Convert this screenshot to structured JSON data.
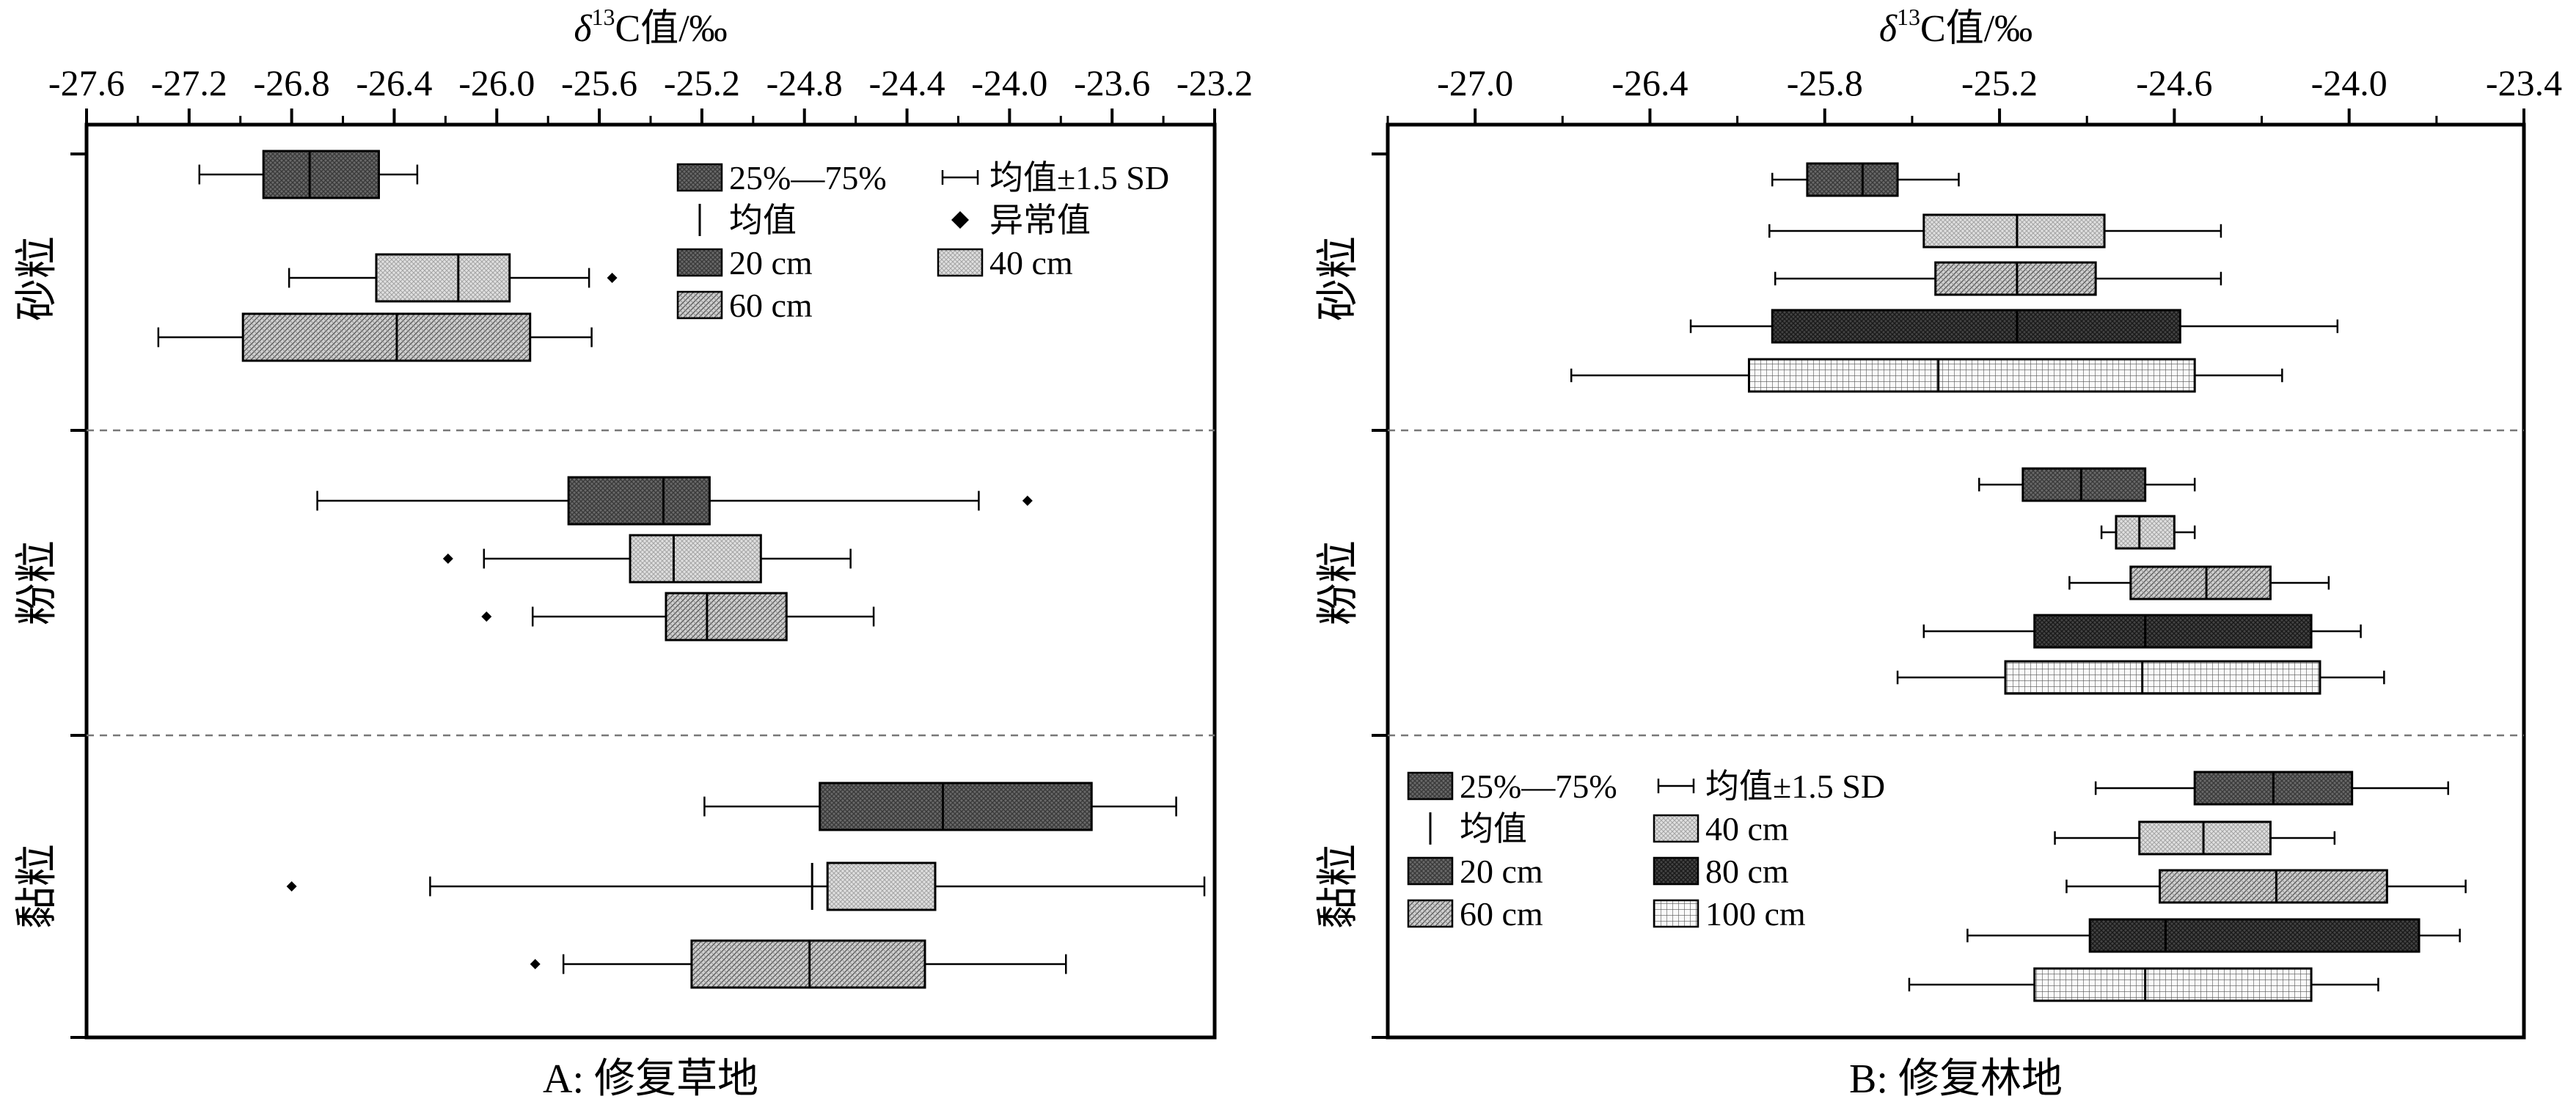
{
  "patterns": {
    "20 cm": "dark-dots",
    "40 cm": "light-dots",
    "60 cm": "diagonal-hatch",
    "80 cm": "dark-crosshatch",
    "100 cm": "grid"
  },
  "chart_data": [
    {
      "type": "box",
      "panel_caption": "A: 修复草地",
      "xlabel_prefix": "δ",
      "xlabel_sup": "13",
      "xlabel_suffix": "C值/‰",
      "xlim": [
        -27.6,
        -23.2
      ],
      "xticks": [
        -27.6,
        -27.2,
        -26.8,
        -26.4,
        -26.0,
        -25.6,
        -25.2,
        -24.8,
        -24.4,
        -24.0,
        -23.6,
        -23.2
      ],
      "xtick_labels": [
        "-27.6",
        "-27.2",
        "-26.8",
        "-26.4",
        "-26.0",
        "-25.6",
        "-25.2",
        "-24.8",
        "-24.4",
        "-24.0",
        "-23.6",
        "-23.2"
      ],
      "groups": [
        "砂粒",
        "粉粒",
        "黏粒"
      ],
      "legend": {
        "position": "top-right",
        "items": [
          {
            "kind": "box",
            "label": "25%—75%"
          },
          {
            "kind": "whisker",
            "label": "均值±1.5 SD"
          },
          {
            "kind": "mean",
            "label": "均值"
          },
          {
            "kind": "outlier",
            "label": "异常值"
          },
          {
            "kind": "depth",
            "label": "20 cm",
            "depth": "20 cm"
          },
          {
            "kind": "depth",
            "label": "40 cm",
            "depth": "40 cm"
          },
          {
            "kind": "depth",
            "label": "60 cm",
            "depth": "60 cm"
          }
        ]
      },
      "boxes": [
        {
          "group": "砂粒",
          "depth": "20 cm",
          "whisker_low": -27.16,
          "q1": -26.91,
          "mean": -26.73,
          "q3": -26.46,
          "whisker_high": -26.31,
          "outliers": []
        },
        {
          "group": "砂粒",
          "depth": "40 cm",
          "whisker_low": -26.81,
          "q1": -26.47,
          "mean": -26.15,
          "q3": -25.95,
          "whisker_high": -25.64,
          "outliers": [
            -25.55
          ]
        },
        {
          "group": "砂粒",
          "depth": "60 cm",
          "whisker_low": -27.32,
          "q1": -26.99,
          "mean": -26.39,
          "q3": -25.87,
          "whisker_high": -25.63,
          "outliers": []
        },
        {
          "group": "粉粒",
          "depth": "20 cm",
          "whisker_low": -26.7,
          "q1": -25.72,
          "mean": -25.35,
          "q3": -25.17,
          "whisker_high": -24.12,
          "outliers": [
            -23.93
          ]
        },
        {
          "group": "粉粒",
          "depth": "40 cm",
          "whisker_low": -26.05,
          "q1": -25.48,
          "mean": -25.31,
          "q3": -24.97,
          "whisker_high": -24.62,
          "outliers": [
            -26.19
          ]
        },
        {
          "group": "粉粒",
          "depth": "60 cm",
          "whisker_low": -25.86,
          "q1": -25.34,
          "mean": -25.18,
          "q3": -24.87,
          "whisker_high": -24.53,
          "outliers": [
            -26.04
          ]
        },
        {
          "group": "黏粒",
          "depth": "20 cm",
          "whisker_low": -25.19,
          "q1": -24.74,
          "mean": -24.26,
          "q3": -23.68,
          "whisker_high": -23.35,
          "outliers": []
        },
        {
          "group": "黏粒",
          "depth": "40 cm",
          "whisker_low": -26.26,
          "q1": -24.71,
          "mean": -24.77,
          "q3": -24.29,
          "whisker_high": -23.24,
          "outliers": [
            -26.8
          ]
        },
        {
          "group": "黏粒",
          "depth": "60 cm",
          "whisker_low": -25.74,
          "q1": -25.24,
          "mean": -24.78,
          "q3": -24.33,
          "whisker_high": -23.78,
          "outliers": [
            -25.85
          ]
        }
      ]
    },
    {
      "type": "box",
      "panel_caption": "B: 修复林地",
      "xlabel_prefix": "δ",
      "xlabel_sup": "13",
      "xlabel_suffix": "C值/‰",
      "xlim": [
        -27.3,
        -23.4
      ],
      "xticks": [
        -27.0,
        -26.4,
        -25.8,
        -25.2,
        -24.6,
        -24.0,
        -23.4
      ],
      "xtick_labels": [
        "-27.0",
        "-26.4",
        "-25.8",
        "-25.2",
        "-24.6",
        "-24.0",
        "-23.4"
      ],
      "minor_step": 0.3,
      "groups": [
        "砂粒",
        "粉粒",
        "黏粒"
      ],
      "legend": {
        "position": "bottom-left",
        "items": [
          {
            "kind": "box",
            "label": "25%—75%"
          },
          {
            "kind": "whisker",
            "label": "均值±1.5 SD"
          },
          {
            "kind": "mean",
            "label": "均值"
          },
          {
            "kind": "depth",
            "label": "40 cm",
            "depth": "40 cm"
          },
          {
            "kind": "depth",
            "label": "20 cm",
            "depth": "20 cm"
          },
          {
            "kind": "depth",
            "label": "80 cm",
            "depth": "80 cm"
          },
          {
            "kind": "depth",
            "label": "60 cm",
            "depth": "60 cm"
          },
          {
            "kind": "depth",
            "label": "100 cm",
            "depth": "100 cm"
          }
        ]
      },
      "boxes": [
        {
          "group": "砂粒",
          "depth": "20 cm",
          "whisker_low": -25.98,
          "q1": -25.86,
          "mean": -25.67,
          "q3": -25.55,
          "whisker_high": -25.34,
          "outliers": []
        },
        {
          "group": "砂粒",
          "depth": "40 cm",
          "whisker_low": -25.99,
          "q1": -25.46,
          "mean": -25.14,
          "q3": -24.84,
          "whisker_high": -24.44,
          "outliers": []
        },
        {
          "group": "砂粒",
          "depth": "60 cm",
          "whisker_low": -25.97,
          "q1": -25.42,
          "mean": -25.14,
          "q3": -24.87,
          "whisker_high": -24.44,
          "outliers": []
        },
        {
          "group": "砂粒",
          "depth": "80 cm",
          "whisker_low": -26.26,
          "q1": -25.98,
          "mean": -25.14,
          "q3": -24.58,
          "whisker_high": -24.04,
          "outliers": []
        },
        {
          "group": "砂粒",
          "depth": "100 cm",
          "whisker_low": -26.67,
          "q1": -26.06,
          "mean": -25.41,
          "q3": -24.53,
          "whisker_high": -24.23,
          "outliers": []
        },
        {
          "group": "粉粒",
          "depth": "20 cm",
          "whisker_low": -25.27,
          "q1": -25.12,
          "mean": -24.92,
          "q3": -24.7,
          "whisker_high": -24.53,
          "outliers": []
        },
        {
          "group": "粉粒",
          "depth": "40 cm",
          "whisker_low": -24.85,
          "q1": -24.8,
          "mean": -24.72,
          "q3": -24.6,
          "whisker_high": -24.53,
          "outliers": []
        },
        {
          "group": "粉粒",
          "depth": "60 cm",
          "whisker_low": -24.96,
          "q1": -24.75,
          "mean": -24.49,
          "q3": -24.27,
          "whisker_high": -24.07,
          "outliers": []
        },
        {
          "group": "粉粒",
          "depth": "80 cm",
          "whisker_low": -25.46,
          "q1": -25.08,
          "mean": -24.7,
          "q3": -24.13,
          "whisker_high": -23.96,
          "outliers": []
        },
        {
          "group": "粉粒",
          "depth": "100 cm",
          "whisker_low": -25.55,
          "q1": -25.18,
          "mean": -24.71,
          "q3": -24.1,
          "whisker_high": -23.88,
          "outliers": []
        },
        {
          "group": "黏粒",
          "depth": "20 cm",
          "whisker_low": -24.87,
          "q1": -24.53,
          "mean": -24.26,
          "q3": -23.99,
          "whisker_high": -23.66,
          "outliers": []
        },
        {
          "group": "黏粒",
          "depth": "40 cm",
          "whisker_low": -25.01,
          "q1": -24.72,
          "mean": -24.5,
          "q3": -24.27,
          "whisker_high": -24.05,
          "outliers": []
        },
        {
          "group": "黏粒",
          "depth": "60 cm",
          "whisker_low": -24.97,
          "q1": -24.65,
          "mean": -24.25,
          "q3": -23.87,
          "whisker_high": -23.6,
          "outliers": []
        },
        {
          "group": "黏粒",
          "depth": "80 cm",
          "whisker_low": -25.31,
          "q1": -24.89,
          "mean": -24.63,
          "q3": -23.76,
          "whisker_high": -23.62,
          "outliers": []
        },
        {
          "group": "黏粒",
          "depth": "100 cm",
          "whisker_low": -25.51,
          "q1": -25.08,
          "mean": -24.7,
          "q3": -24.13,
          "whisker_high": -23.9,
          "outliers": []
        }
      ]
    }
  ]
}
